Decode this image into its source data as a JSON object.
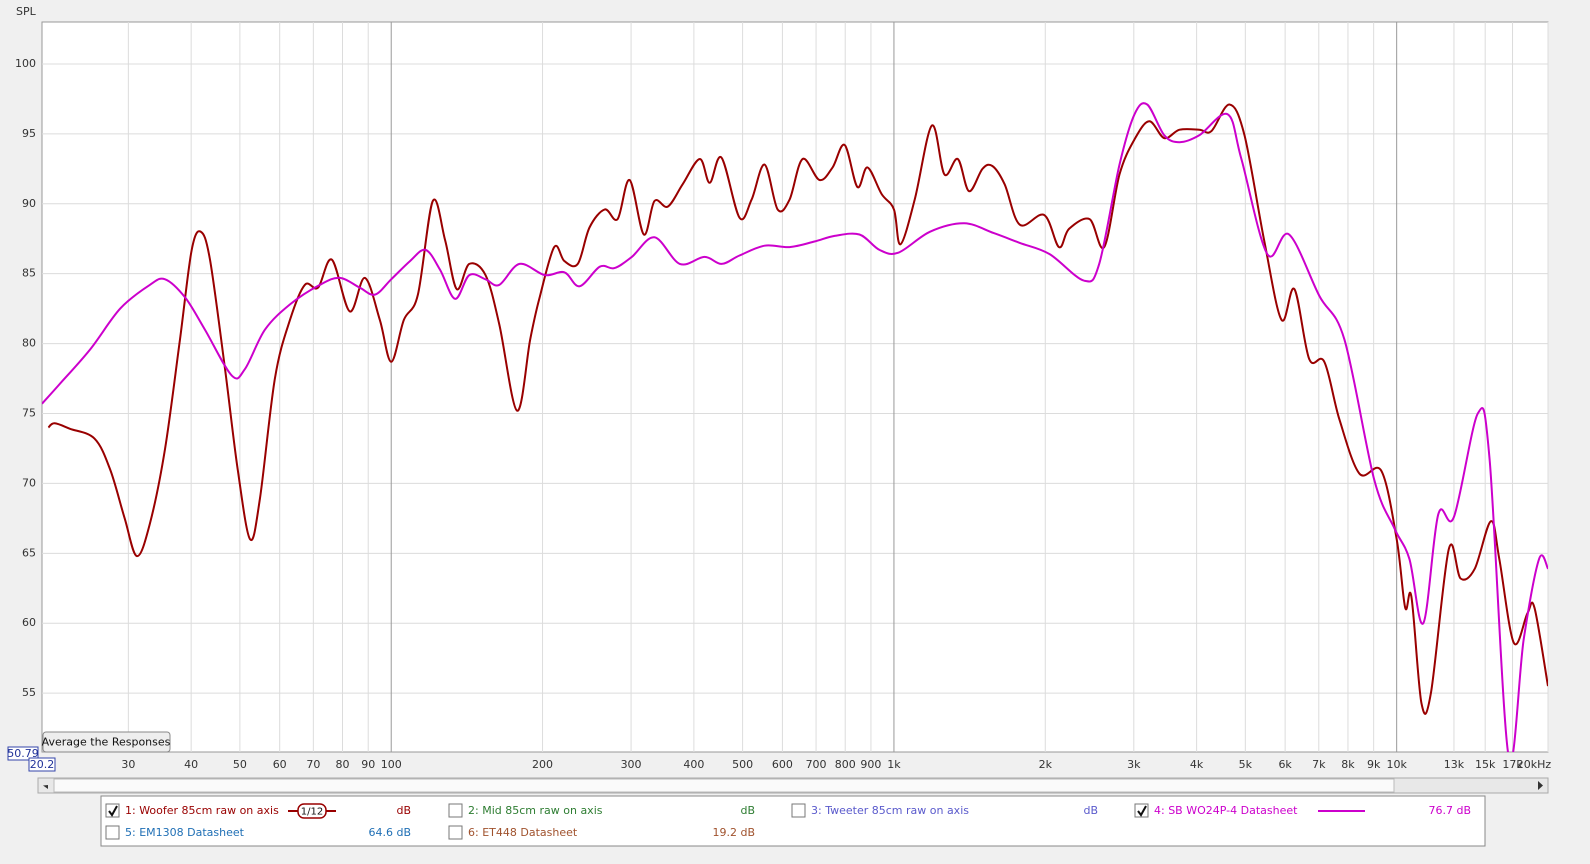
{
  "chart_data": {
    "type": "line",
    "y_label": "SPL",
    "log_x": true,
    "grid": true,
    "xlim": [
      20.2,
      20000
    ],
    "ylim": [
      50.79,
      103
    ],
    "xticks": [
      30,
      40,
      50,
      60,
      70,
      80,
      90,
      100,
      200,
      300,
      400,
      500,
      600,
      700,
      800,
      900,
      {
        "value": 1000,
        "label": "1k"
      },
      {
        "value": 2000,
        "label": "2k"
      },
      {
        "value": 3000,
        "label": "3k"
      },
      {
        "value": 4000,
        "label": "4k"
      },
      {
        "value": 5000,
        "label": "5k"
      },
      {
        "value": 6000,
        "label": "6k"
      },
      {
        "value": 7000,
        "label": "7k"
      },
      {
        "value": 8000,
        "label": "8k"
      },
      {
        "value": 9000,
        "label": "9k"
      },
      {
        "value": 10000,
        "label": "10k"
      },
      {
        "value": 13000,
        "label": "13k"
      },
      {
        "value": 15000,
        "label": "15k"
      },
      {
        "value": 17000,
        "label": "17k"
      },
      {
        "value": 20000,
        "label": "20kHz"
      }
    ],
    "yticks": [
      55,
      60,
      65,
      70,
      75,
      80,
      85,
      90,
      95,
      100
    ],
    "series": [
      {
        "name": "1: Woofer 85cm raw on axis",
        "color": "#990000",
        "checked": true,
        "smoothing": "1/12",
        "level": "dB",
        "x": [
          20.8,
          21.4,
          23.0,
          25.7,
          27.6,
          29.5,
          31.2,
          33.1,
          35.5,
          38.0,
          40.1,
          41.8,
          43.6,
          46.7,
          49.5,
          52.4,
          54.8,
          58.7,
          62.9,
          67.3,
          71.5,
          76.2,
          82.7,
          88.6,
          94.9,
          100,
          106,
          113,
          121,
          128,
          135,
          143,
          154,
          164,
          178,
          189,
          197,
          211,
          221,
          235,
          248,
          266,
          282,
          298,
          318,
          334,
          355,
          380,
          411,
          430,
          454,
          493,
          521,
          553,
          587,
          620,
          658,
          711,
          755,
          798,
          846,
          886,
          945,
          1000,
          1030,
          1100,
          1190,
          1260,
          1340,
          1410,
          1500,
          1570,
          1660,
          1780,
          1990,
          2130,
          2230,
          2450,
          2620,
          2810,
          3010,
          3220,
          3450,
          3700,
          4050,
          4280,
          4650,
          4980,
          5450,
          5900,
          6260,
          6700,
          7180,
          7690,
          8430,
          9320,
          10000,
          10400,
          10700,
          11200,
          11700,
          12700,
          13400,
          14300,
          15400,
          16000,
          17100,
          18200,
          18800,
          20000
        ],
        "values": [
          74.0,
          74.3,
          73.9,
          73.2,
          71.0,
          67.5,
          64.8,
          67.1,
          72.5,
          80.3,
          86.7,
          88.0,
          86.0,
          78.2,
          71.0,
          66.0,
          68.9,
          77.5,
          81.7,
          84.2,
          84.0,
          86.0,
          82.3,
          84.7,
          81.7,
          78.7,
          81.7,
          83.5,
          90.2,
          87.4,
          83.9,
          85.7,
          84.9,
          81.4,
          75.2,
          80.3,
          83.2,
          86.9,
          85.9,
          85.7,
          88.3,
          89.6,
          88.9,
          91.7,
          87.8,
          90.2,
          89.8,
          91.4,
          93.2,
          91.5,
          93.3,
          89.0,
          90.3,
          92.8,
          89.6,
          90.3,
          93.2,
          91.7,
          92.6,
          94.2,
          91.2,
          92.6,
          90.7,
          89.6,
          87.1,
          90.3,
          95.6,
          92.1,
          93.2,
          90.9,
          92.5,
          92.7,
          91.4,
          88.5,
          89.2,
          86.9,
          88.2,
          88.9,
          86.9,
          92.1,
          94.6,
          95.9,
          94.7,
          95.3,
          95.3,
          95.2,
          97.1,
          94.9,
          87.4,
          81.7,
          83.9,
          78.9,
          78.7,
          74.6,
          70.7,
          70.9,
          66.0,
          61.1,
          61.9,
          54.3,
          55.0,
          65.3,
          63.2,
          63.9,
          67.3,
          64.6,
          58.6,
          60.7,
          61.1,
          55.5
        ]
      },
      {
        "name": "4: SB WO24P-4 Datasheet",
        "color": "#cc00cc",
        "checked": true,
        "level": "76.7 dB",
        "x": [
          20.2,
          21.9,
          25.2,
          28.9,
          33.1,
          35.5,
          38.9,
          42.6,
          48.2,
          51.2,
          56.1,
          62.9,
          72.1,
          79.0,
          86.6,
          92.8,
          100,
          109,
          117,
          125,
          134,
          143,
          154,
          164,
          180,
          202,
          221,
          237,
          260,
          278,
          301,
          334,
          375,
          420,
          454,
          493,
          553,
          620,
          695,
          762,
          854,
          936,
          1020,
          1180,
          1380,
          1580,
          1780,
          2040,
          2390,
          2560,
          2810,
          3010,
          3190,
          3450,
          3700,
          4050,
          4610,
          4910,
          5530,
          6110,
          7020,
          7870,
          9020,
          9890,
          10600,
          11300,
          12100,
          13000,
          14500,
          15300,
          16700,
          17900,
          19200,
          20000
        ],
        "values": [
          75.7,
          77.1,
          79.6,
          82.5,
          84.2,
          84.6,
          83.3,
          81.0,
          77.7,
          78.2,
          81.0,
          82.8,
          84.2,
          84.7,
          84.0,
          83.5,
          84.6,
          85.9,
          86.7,
          85.3,
          83.2,
          84.9,
          84.6,
          84.2,
          85.7,
          84.9,
          85.1,
          84.1,
          85.5,
          85.4,
          86.2,
          87.6,
          85.7,
          86.2,
          85.7,
          86.3,
          87.0,
          86.9,
          87.3,
          87.7,
          87.8,
          86.7,
          86.5,
          88.0,
          88.6,
          87.9,
          87.2,
          86.4,
          84.5,
          85.7,
          92.8,
          96.4,
          97.1,
          94.9,
          94.4,
          94.9,
          96.4,
          93.2,
          86.4,
          87.8,
          83.4,
          80.3,
          70.3,
          66.8,
          64.6,
          60.0,
          67.8,
          67.6,
          75.0,
          71.8,
          50.5,
          58.9,
          64.6,
          63.9
        ]
      }
    ]
  },
  "legend_panel": {
    "other_traces": [
      {
        "label": "2: Mid 85cm raw on axis",
        "checked": false,
        "color": "#2e7d32",
        "level": "dB"
      },
      {
        "label": "3: Tweeter 85cm raw on axis",
        "checked": false,
        "color": "#5a5acc",
        "level": "dB"
      },
      {
        "label": "5: EM1308 Datasheet",
        "checked": false,
        "color": "#1f6fb5",
        "level": "64.6 dB"
      },
      {
        "label": "6: ET448 Datasheet",
        "checked": false,
        "color": "#a0522d",
        "level": "19.2 dB"
      }
    ]
  },
  "controls": {
    "average_button": "Average the Responses"
  }
}
